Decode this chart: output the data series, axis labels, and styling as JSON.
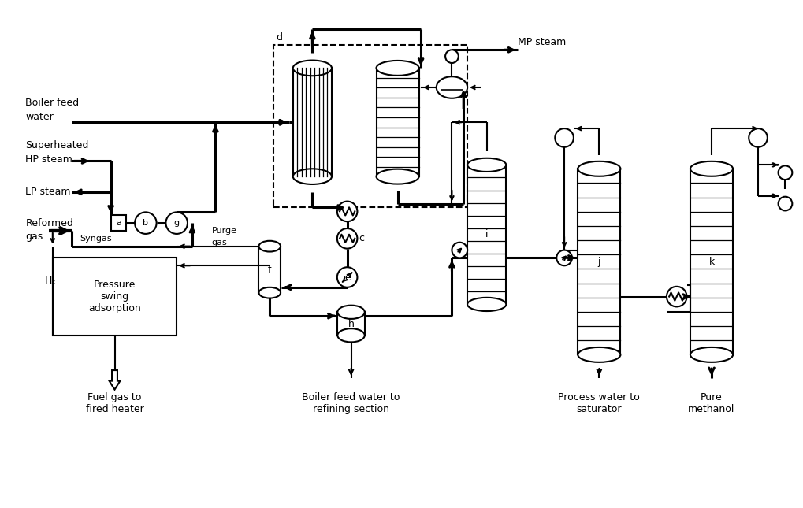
{
  "bg_color": "#ffffff",
  "line_color": "#000000",
  "lw": 1.5,
  "lw2": 2.2,
  "fig_width": 10.19,
  "fig_height": 6.45,
  "labels": {
    "boiler_feed_water": "Boiler feed\nwater",
    "superheated_hp": "Superheated\nHP steam",
    "lp_steam": "LP steam",
    "reformed_gas": "Reformed\ngas",
    "syngas": "Syngas",
    "h2": "H₂",
    "purge_gas": "Purge\ngas",
    "mp_steam": "MP steam",
    "fuel_gas": "Fuel gas to\nfired heater",
    "bfw_refining": "Boiler feed water to\nrefining section",
    "process_water": "Process water\nto saturator",
    "pure_methanol": "Pure\nmethanol",
    "d_label": "d"
  }
}
